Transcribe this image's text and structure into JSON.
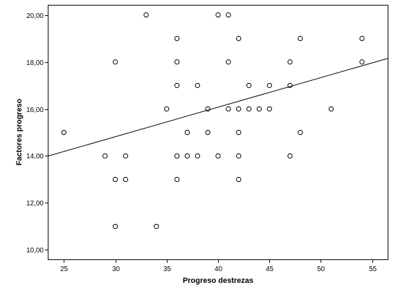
{
  "chart_data": {
    "type": "scatter",
    "title": "",
    "xlabel": "Progreso destrezas",
    "ylabel": "Factores progreso",
    "xlim": [
      23.5,
      56.5
    ],
    "ylim": [
      9.6,
      20.4
    ],
    "xticks": [
      25,
      30,
      35,
      40,
      45,
      50,
      55
    ],
    "xtick_labels": [
      "25",
      "30",
      "35",
      "40",
      "45",
      "50",
      "55"
    ],
    "yticks": [
      10,
      12,
      14,
      16,
      18,
      20
    ],
    "ytick_labels": [
      "10,00",
      "12,00",
      "14,00",
      "16,00",
      "18,00",
      "20,00"
    ],
    "grid": false,
    "legend": "none",
    "points": [
      [
        25,
        15
      ],
      [
        29,
        14
      ],
      [
        30,
        18
      ],
      [
        30,
        13
      ],
      [
        30,
        11
      ],
      [
        31,
        14
      ],
      [
        31,
        13
      ],
      [
        33,
        20
      ],
      [
        34,
        11
      ],
      [
        35,
        16
      ],
      [
        36,
        19
      ],
      [
        36,
        18
      ],
      [
        36,
        17
      ],
      [
        36,
        14
      ],
      [
        36,
        13
      ],
      [
        37,
        15
      ],
      [
        37,
        14
      ],
      [
        38,
        17
      ],
      [
        38,
        14
      ],
      [
        39,
        16
      ],
      [
        39,
        15
      ],
      [
        40,
        20
      ],
      [
        40,
        14
      ],
      [
        41,
        20
      ],
      [
        41,
        18
      ],
      [
        41,
        16
      ],
      [
        42,
        19
      ],
      [
        42,
        16
      ],
      [
        42,
        15
      ],
      [
        42,
        14
      ],
      [
        42,
        13
      ],
      [
        43,
        17
      ],
      [
        43,
        16
      ],
      [
        44,
        16
      ],
      [
        45,
        17
      ],
      [
        45,
        16
      ],
      [
        47,
        18
      ],
      [
        47,
        17
      ],
      [
        47,
        14
      ],
      [
        48,
        19
      ],
      [
        48,
        15
      ],
      [
        51,
        16
      ],
      [
        54,
        19
      ],
      [
        54,
        18
      ]
    ],
    "fit_line": {
      "type": "linear",
      "x": [
        23.5,
        56.5
      ],
      "y": [
        14.0,
        18.15
      ]
    },
    "colors": {
      "point_stroke": "#000000",
      "line": "#000000",
      "frame": "#000000",
      "background": "#ffffff"
    }
  }
}
